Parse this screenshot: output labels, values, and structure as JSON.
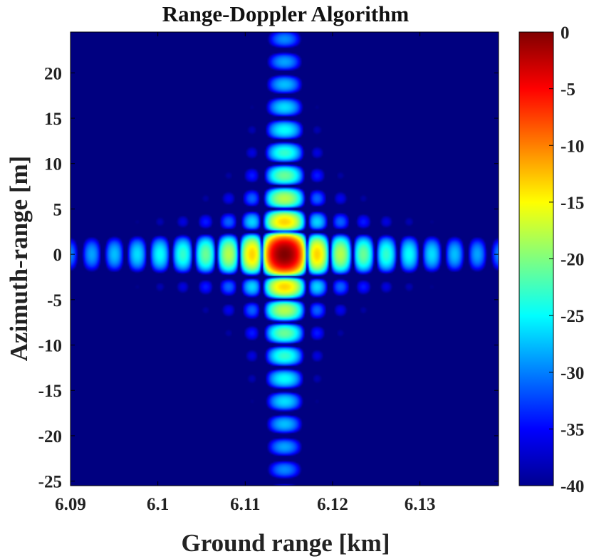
{
  "chart_data": {
    "type": "heatmap",
    "title": "Range-Doppler Algorithm",
    "xlabel": "Ground range [km]",
    "ylabel": "Azimuth-range [m]",
    "xlim": [
      6.09,
      6.139
    ],
    "ylim": [
      -25.5,
      24.5
    ],
    "xticks": [
      "6.09",
      "6.1",
      "6.11",
      "6.12",
      "6.13"
    ],
    "xtick_values": [
      6.09,
      6.1,
      6.11,
      6.12,
      6.13
    ],
    "yticks": [
      "20",
      "15",
      "10",
      "5",
      "0",
      "-5",
      "-10",
      "-15",
      "-20",
      "-25"
    ],
    "ytick_values": [
      20,
      15,
      10,
      5,
      0,
      -5,
      -10,
      -15,
      -20,
      -25
    ],
    "colorbar": {
      "label": "",
      "range_db": [
        -40,
        0
      ],
      "ticks": [
        "0",
        "-5",
        "-10",
        "-15",
        "-20",
        "-25",
        "-30",
        "-35",
        "-40"
      ],
      "tick_values": [
        0,
        -5,
        -10,
        -15,
        -20,
        -25,
        -30,
        -35,
        -40
      ],
      "colormap": "jet"
    },
    "point_target": {
      "ground_range_km": 6.1145,
      "azimuth_m": 0,
      "peak_db": 0
    },
    "range_sidelobe_spacing_km": 0.0026,
    "azimuth_sidelobe_spacing_m": 2.5,
    "floor_db": -40
  }
}
